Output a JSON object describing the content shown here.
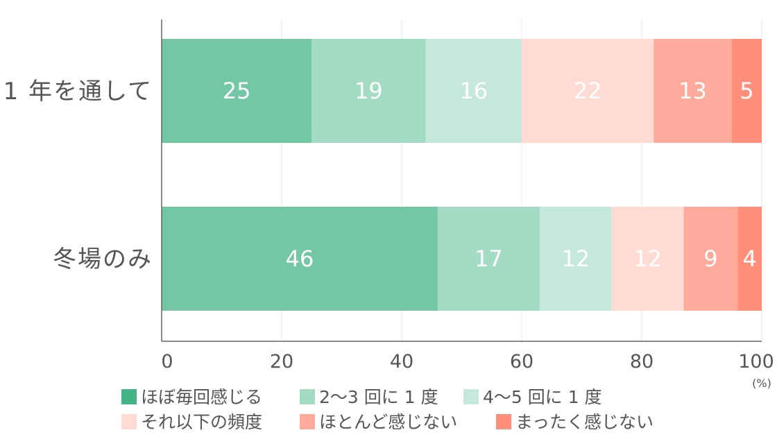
{
  "chart_data": {
    "type": "bar",
    "orientation": "horizontal",
    "stacked": true,
    "categories": [
      "1 年を通して",
      "冬場のみ"
    ],
    "series": [
      {
        "name": "ほぼ毎回感じる",
        "color": "#74c7a5",
        "legend_color": "#41b384",
        "values": [
          25,
          46
        ]
      },
      {
        "name": "2〜3 回に 1 度",
        "color": "#a3dbc4",
        "legend_color": "#a3dbc4",
        "values": [
          19,
          17
        ]
      },
      {
        "name": "4〜5 回に 1 度",
        "color": "#c5e8da",
        "legend_color": "#c5e8da",
        "values": [
          16,
          12
        ]
      },
      {
        "name": "それ以下の頻度",
        "color": "#ffdbd4",
        "legend_color": "#ffdbd4",
        "values": [
          22,
          12
        ]
      },
      {
        "name": "ほとんど感じない",
        "color": "#ffaa9a",
        "legend_color": "#ffaa9a",
        "values": [
          13,
          9
        ]
      },
      {
        "name": "まったく感じない",
        "color": "#ff8e7a",
        "legend_color": "#ff8e7a",
        "values": [
          5,
          4
        ]
      }
    ],
    "xlim": [
      0,
      100
    ],
    "xticks": [
      0,
      20,
      40,
      60,
      80,
      100
    ],
    "x_unit": "(%)",
    "title": "",
    "xlabel": "",
    "ylabel": "",
    "grid": true,
    "legend_position": "bottom"
  }
}
